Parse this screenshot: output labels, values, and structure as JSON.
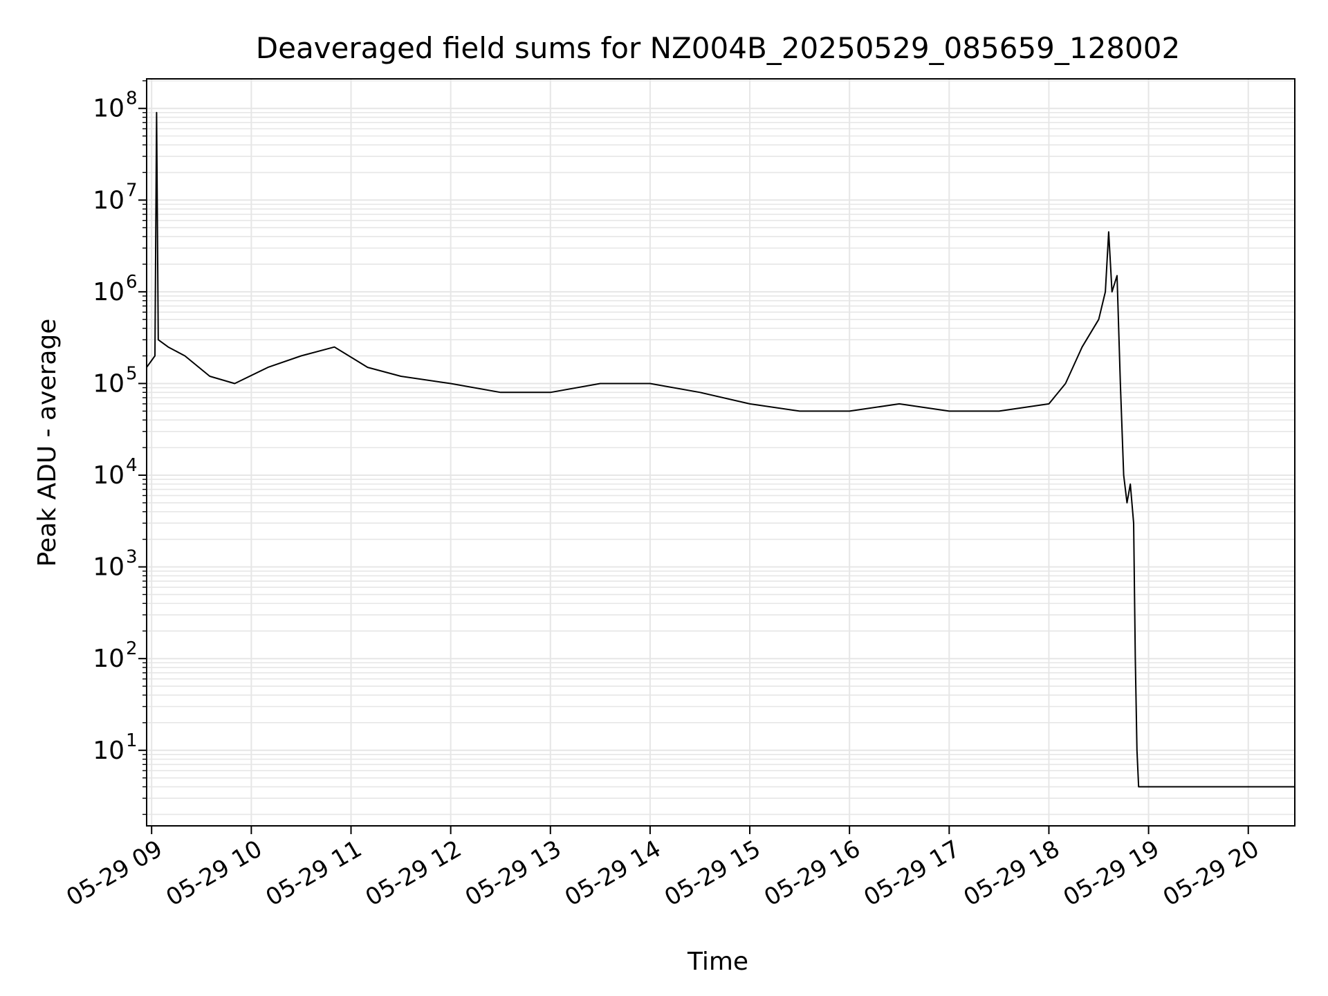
{
  "chart_data": {
    "type": "line",
    "title": "Deaveraged field sums for NZ004B_20250529_085659_128002",
    "xlabel": "Time",
    "ylabel": "Peak ADU - average",
    "y_scale": "log",
    "ylim": [
      1.5,
      210000000
    ],
    "xlim": [
      "2025-05-29 08:57",
      "2025-05-29 20:28"
    ],
    "x_ticks": [
      {
        "value": "2025-05-29 09:00",
        "label": "05-29 09"
      },
      {
        "value": "2025-05-29 10:00",
        "label": "05-29 10"
      },
      {
        "value": "2025-05-29 11:00",
        "label": "05-29 11"
      },
      {
        "value": "2025-05-29 12:00",
        "label": "05-29 12"
      },
      {
        "value": "2025-05-29 13:00",
        "label": "05-29 13"
      },
      {
        "value": "2025-05-29 14:00",
        "label": "05-29 14"
      },
      {
        "value": "2025-05-29 15:00",
        "label": "05-29 15"
      },
      {
        "value": "2025-05-29 16:00",
        "label": "05-29 16"
      },
      {
        "value": "2025-05-29 17:00",
        "label": "05-29 17"
      },
      {
        "value": "2025-05-29 18:00",
        "label": "05-29 18"
      },
      {
        "value": "2025-05-29 19:00",
        "label": "05-29 19"
      },
      {
        "value": "2025-05-29 20:00",
        "label": "05-29 20"
      }
    ],
    "y_ticks": [
      {
        "value": 10,
        "base": "10",
        "exp": "1"
      },
      {
        "value": 100,
        "base": "10",
        "exp": "2"
      },
      {
        "value": 1000,
        "base": "10",
        "exp": "3"
      },
      {
        "value": 10000,
        "base": "10",
        "exp": "4"
      },
      {
        "value": 100000,
        "base": "10",
        "exp": "5"
      },
      {
        "value": 1000000,
        "base": "10",
        "exp": "6"
      },
      {
        "value": 10000000,
        "base": "10",
        "exp": "7"
      },
      {
        "value": 100000000,
        "base": "10",
        "exp": "8"
      }
    ],
    "grid": true,
    "line_color": "#000000",
    "grid_color": "#e6e6e6",
    "series": [
      {
        "x": [
          "2025-05-29 08:57",
          "2025-05-29 09:02",
          "2025-05-29 09:03",
          "2025-05-29 09:04",
          "2025-05-29 09:10",
          "2025-05-29 09:20",
          "2025-05-29 09:35",
          "2025-05-29 09:50",
          "2025-05-29 10:10",
          "2025-05-29 10:30",
          "2025-05-29 10:50",
          "2025-05-29 11:10",
          "2025-05-29 11:30",
          "2025-05-29 12:00",
          "2025-05-29 12:30",
          "2025-05-29 13:00",
          "2025-05-29 13:30",
          "2025-05-29 14:00",
          "2025-05-29 14:30",
          "2025-05-29 15:00",
          "2025-05-29 15:30",
          "2025-05-29 16:00",
          "2025-05-29 16:30",
          "2025-05-29 17:00",
          "2025-05-29 17:30",
          "2025-05-29 18:00",
          "2025-05-29 18:10",
          "2025-05-29 18:20",
          "2025-05-29 18:30",
          "2025-05-29 18:34",
          "2025-05-29 18:36",
          "2025-05-29 18:38",
          "2025-05-29 18:41",
          "2025-05-29 18:43",
          "2025-05-29 18:45",
          "2025-05-29 18:47",
          "2025-05-29 18:49",
          "2025-05-29 18:51",
          "2025-05-29 18:52",
          "2025-05-29 18:53",
          "2025-05-29 18:54",
          "2025-05-29 19:30",
          "2025-05-29 20:00",
          "2025-05-29 20:28"
        ],
        "y": [
          150000,
          200000,
          90000000,
          300000,
          250000,
          200000,
          120000,
          100000,
          150000,
          200000,
          250000,
          150000,
          120000,
          100000,
          80000,
          80000,
          100000,
          100000,
          80000,
          60000,
          50000,
          50000,
          60000,
          50000,
          50000,
          60000,
          100000,
          250000,
          500000,
          1000000,
          4500000,
          1000000,
          1500000,
          100000,
          10000,
          5000,
          8000,
          3000,
          100,
          10,
          4,
          4,
          4,
          4
        ]
      }
    ]
  }
}
